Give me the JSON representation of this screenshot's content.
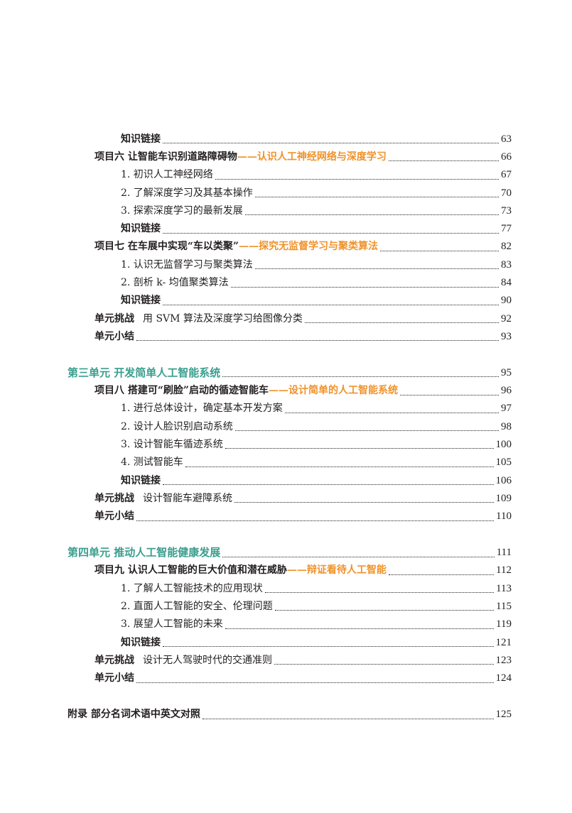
{
  "colors": {
    "unit_heading": "#3a9e8e",
    "project_subtitle": "#f0922a"
  },
  "entries": [
    {
      "level": 2,
      "style": "bold",
      "label": "知识链接",
      "page": "63"
    },
    {
      "level": 1,
      "style": "project",
      "label": "项目六  让智能车识别道路障碍物",
      "sub": "——认识人工神经网络与深度学习",
      "page": "66"
    },
    {
      "level": 2,
      "style": "item",
      "label": "1. 初识人工神经网络",
      "page": "67"
    },
    {
      "level": 2,
      "style": "item",
      "label": "2. 了解深度学习及其基本操作",
      "page": "70"
    },
    {
      "level": 2,
      "style": "item",
      "label": "3. 探索深度学习的最新发展",
      "page": "73"
    },
    {
      "level": 2,
      "style": "bold",
      "label": "知识链接",
      "page": "77"
    },
    {
      "level": 1,
      "style": "project",
      "label": "项目七  在车展中实现“车以类聚”",
      "sub": "——探究无监督学习与聚类算法",
      "page": "82"
    },
    {
      "level": 2,
      "style": "item",
      "label": "1. 认识无监督学习与聚类算法",
      "page": "83"
    },
    {
      "level": 2,
      "style": "item",
      "label": "2. 剖析 k- 均值聚类算法",
      "page": "84"
    },
    {
      "level": 2,
      "style": "bold",
      "label": "知识链接",
      "page": "90"
    },
    {
      "level": 1,
      "style": "challenge",
      "label": "单元挑战",
      "text": "用 SVM 算法及深度学习给图像分类",
      "page": "92"
    },
    {
      "level": 1,
      "style": "bold",
      "label": "单元小结",
      "page": "93"
    },
    {
      "level": 0,
      "style": "unit",
      "gap": true,
      "label": "第三单元  开发简单人工智能系统",
      "page": "95"
    },
    {
      "level": 1,
      "style": "project",
      "label": "项目八  搭建可“刷脸”启动的循迹智能车",
      "sub": "——设计简单的人工智能系统",
      "page": "96"
    },
    {
      "level": 2,
      "style": "item",
      "label": "1. 进行总体设计，确定基本开发方案",
      "page": "97"
    },
    {
      "level": 2,
      "style": "item",
      "label": "2. 设计人脸识别启动系统",
      "page": "98"
    },
    {
      "level": 2,
      "style": "item",
      "label": "3. 设计智能车循迹系统",
      "page": "100"
    },
    {
      "level": 2,
      "style": "item",
      "label": "4. 测试智能车",
      "page": "105"
    },
    {
      "level": 2,
      "style": "bold",
      "label": "知识链接",
      "page": "106"
    },
    {
      "level": 1,
      "style": "challenge",
      "label": "单元挑战",
      "text": "设计智能车避障系统",
      "page": "109"
    },
    {
      "level": 1,
      "style": "bold",
      "label": "单元小结",
      "page": "110"
    },
    {
      "level": 0,
      "style": "unit",
      "gap": true,
      "label": "第四单元  推动人工智能健康发展",
      "page": "111"
    },
    {
      "level": 1,
      "style": "project",
      "label": "项目九  认识人工智能的巨大价值和潜在威胁",
      "sub": "——辩证看待人工智能",
      "page": "112"
    },
    {
      "level": 2,
      "style": "item",
      "label": "1. 了解人工智能技术的应用现状",
      "page": "113"
    },
    {
      "level": 2,
      "style": "item",
      "label": "2. 直面人工智能的安全、伦理问题",
      "page": "115"
    },
    {
      "level": 2,
      "style": "item",
      "label": "3. 展望人工智能的未来",
      "page": "119"
    },
    {
      "level": 2,
      "style": "bold",
      "label": "知识链接",
      "page": "121"
    },
    {
      "level": 1,
      "style": "challenge",
      "label": "单元挑战",
      "text": "设计无人驾驶时代的交通准则",
      "page": "123"
    },
    {
      "level": 1,
      "style": "bold",
      "label": "单元小结",
      "page": "124"
    },
    {
      "level": 0,
      "style": "bold",
      "gap": true,
      "label": "附录  部分名词术语中英文对照",
      "page": "125"
    }
  ]
}
